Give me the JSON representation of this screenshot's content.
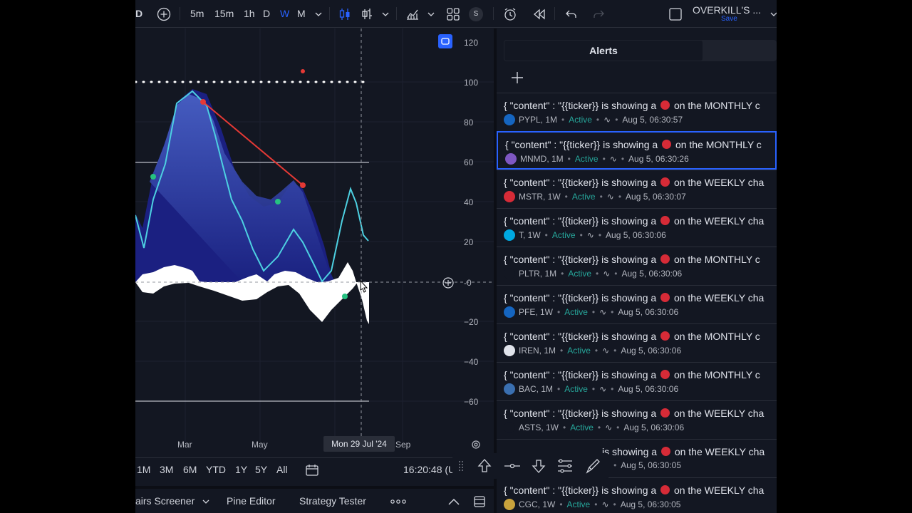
{
  "toolbar": {
    "symbol_suffix": "D",
    "intervals": [
      "5m",
      "15m",
      "1h",
      "D",
      "W",
      "M"
    ],
    "active_interval": "W",
    "layout_name": "OVERKILL'S ...",
    "layout_save": "Save",
    "indicator_badge": "S"
  },
  "price_axis": {
    "ticks": [
      "120",
      "100",
      "80",
      "60",
      "40",
      "20",
      "-0",
      "−20",
      "−40",
      "−60"
    ]
  },
  "time_axis": {
    "ticks": [
      "Mar",
      "May",
      "Sep"
    ],
    "crosshair_date": "Mon 29 Jul '24"
  },
  "range_bar": {
    "ranges": [
      "1M",
      "3M",
      "6M",
      "YTD",
      "1Y",
      "5Y",
      "All"
    ],
    "clock": "16:20:48 (U"
  },
  "bottom_tabs": [
    "airs Screener",
    "Pine Editor",
    "Strategy Tester"
  ],
  "alerts_panel": {
    "tab_label": "Alerts",
    "items": [
      {
        "title_pre": "{ \"content\" : \"{{ticker}} is showing a",
        "title_post": "on the MONTHLY c",
        "ticker": "PYPL, 1M",
        "status": "Active",
        "time": "Aug 5, 06:30:57",
        "icon_color": "#1565c0",
        "icon_name": "paypal-icon"
      },
      {
        "title_pre": "{ \"content\" : \"{{ticker}} is showing a",
        "title_post": "on the MONTHLY c",
        "ticker": "MNMD, 1M",
        "status": "Active",
        "time": "Aug 5, 06:30:26",
        "icon_color": "#7e57c2",
        "icon_name": "mnmd-icon",
        "selected": true
      },
      {
        "title_pre": "{ \"content\" : \"{{ticker}} is showing a",
        "title_post": "on the WEEKLY cha",
        "ticker": "MSTR, 1W",
        "status": "Active",
        "time": "Aug 5, 06:30:07",
        "icon_color": "#d62b37",
        "icon_name": "mstr-icon"
      },
      {
        "title_pre": "{ \"content\" : \"{{ticker}} is showing a",
        "title_post": "on the WEEKLY cha",
        "ticker": "T, 1W",
        "status": "Active",
        "time": "Aug 5, 06:30:06",
        "icon_color": "#00a8e0",
        "icon_name": "att-icon"
      },
      {
        "title_pre": "{ \"content\" : \"{{ticker}} is showing a",
        "title_post": "on the MONTHLY c",
        "ticker": "PLTR, 1M",
        "status": "Active",
        "time": "Aug 5, 06:30:06",
        "icon_color": "#131722",
        "icon_name": "palantir-icon"
      },
      {
        "title_pre": "{ \"content\" : \"{{ticker}} is showing a",
        "title_post": "on the WEEKLY cha",
        "ticker": "PFE, 1W",
        "status": "Active",
        "time": "Aug 5, 06:30:06",
        "icon_color": "#1565c0",
        "icon_name": "pfizer-icon"
      },
      {
        "title_pre": "{ \"content\" : \"{{ticker}} is showing a",
        "title_post": "on the MONTHLY c",
        "ticker": "IREN, 1M",
        "status": "Active",
        "time": "Aug 5, 06:30:06",
        "icon_color": "#e0e3eb",
        "icon_name": "iren-icon"
      },
      {
        "title_pre": "{ \"content\" : \"{{ticker}} is showing a",
        "title_post": "on the MONTHLY c",
        "ticker": "BAC, 1M",
        "status": "Active",
        "time": "Aug 5, 06:30:06",
        "icon_color": "#3a6fb0",
        "icon_name": "bofa-icon"
      },
      {
        "title_pre": "{ \"content\" : \"{{ticker}} is showing a",
        "title_post": "on the WEEKLY cha",
        "ticker": "ASTS, 1W",
        "status": "Active",
        "time": "Aug 5, 06:30:06",
        "icon_color": "#131722",
        "icon_name": "asts-icon"
      },
      {
        "title_pre": "",
        "title_post": "is showing a",
        "title_tail": "on the WEEKLY cha",
        "ticker": "",
        "status": "",
        "time": "Aug 5, 06:30:05",
        "icon_color": "#131722",
        "icon_name": "",
        "partial": true
      },
      {
        "title_pre": "{ \"content\" : \"{{ticker}} is showing a",
        "title_post": "on the WEEKLY cha",
        "ticker": "CGC, 1W",
        "status": "Active",
        "time": "Aug 5, 06:30:05",
        "icon_color": "#c8a23c",
        "icon_name": "cgc-icon"
      }
    ]
  }
}
